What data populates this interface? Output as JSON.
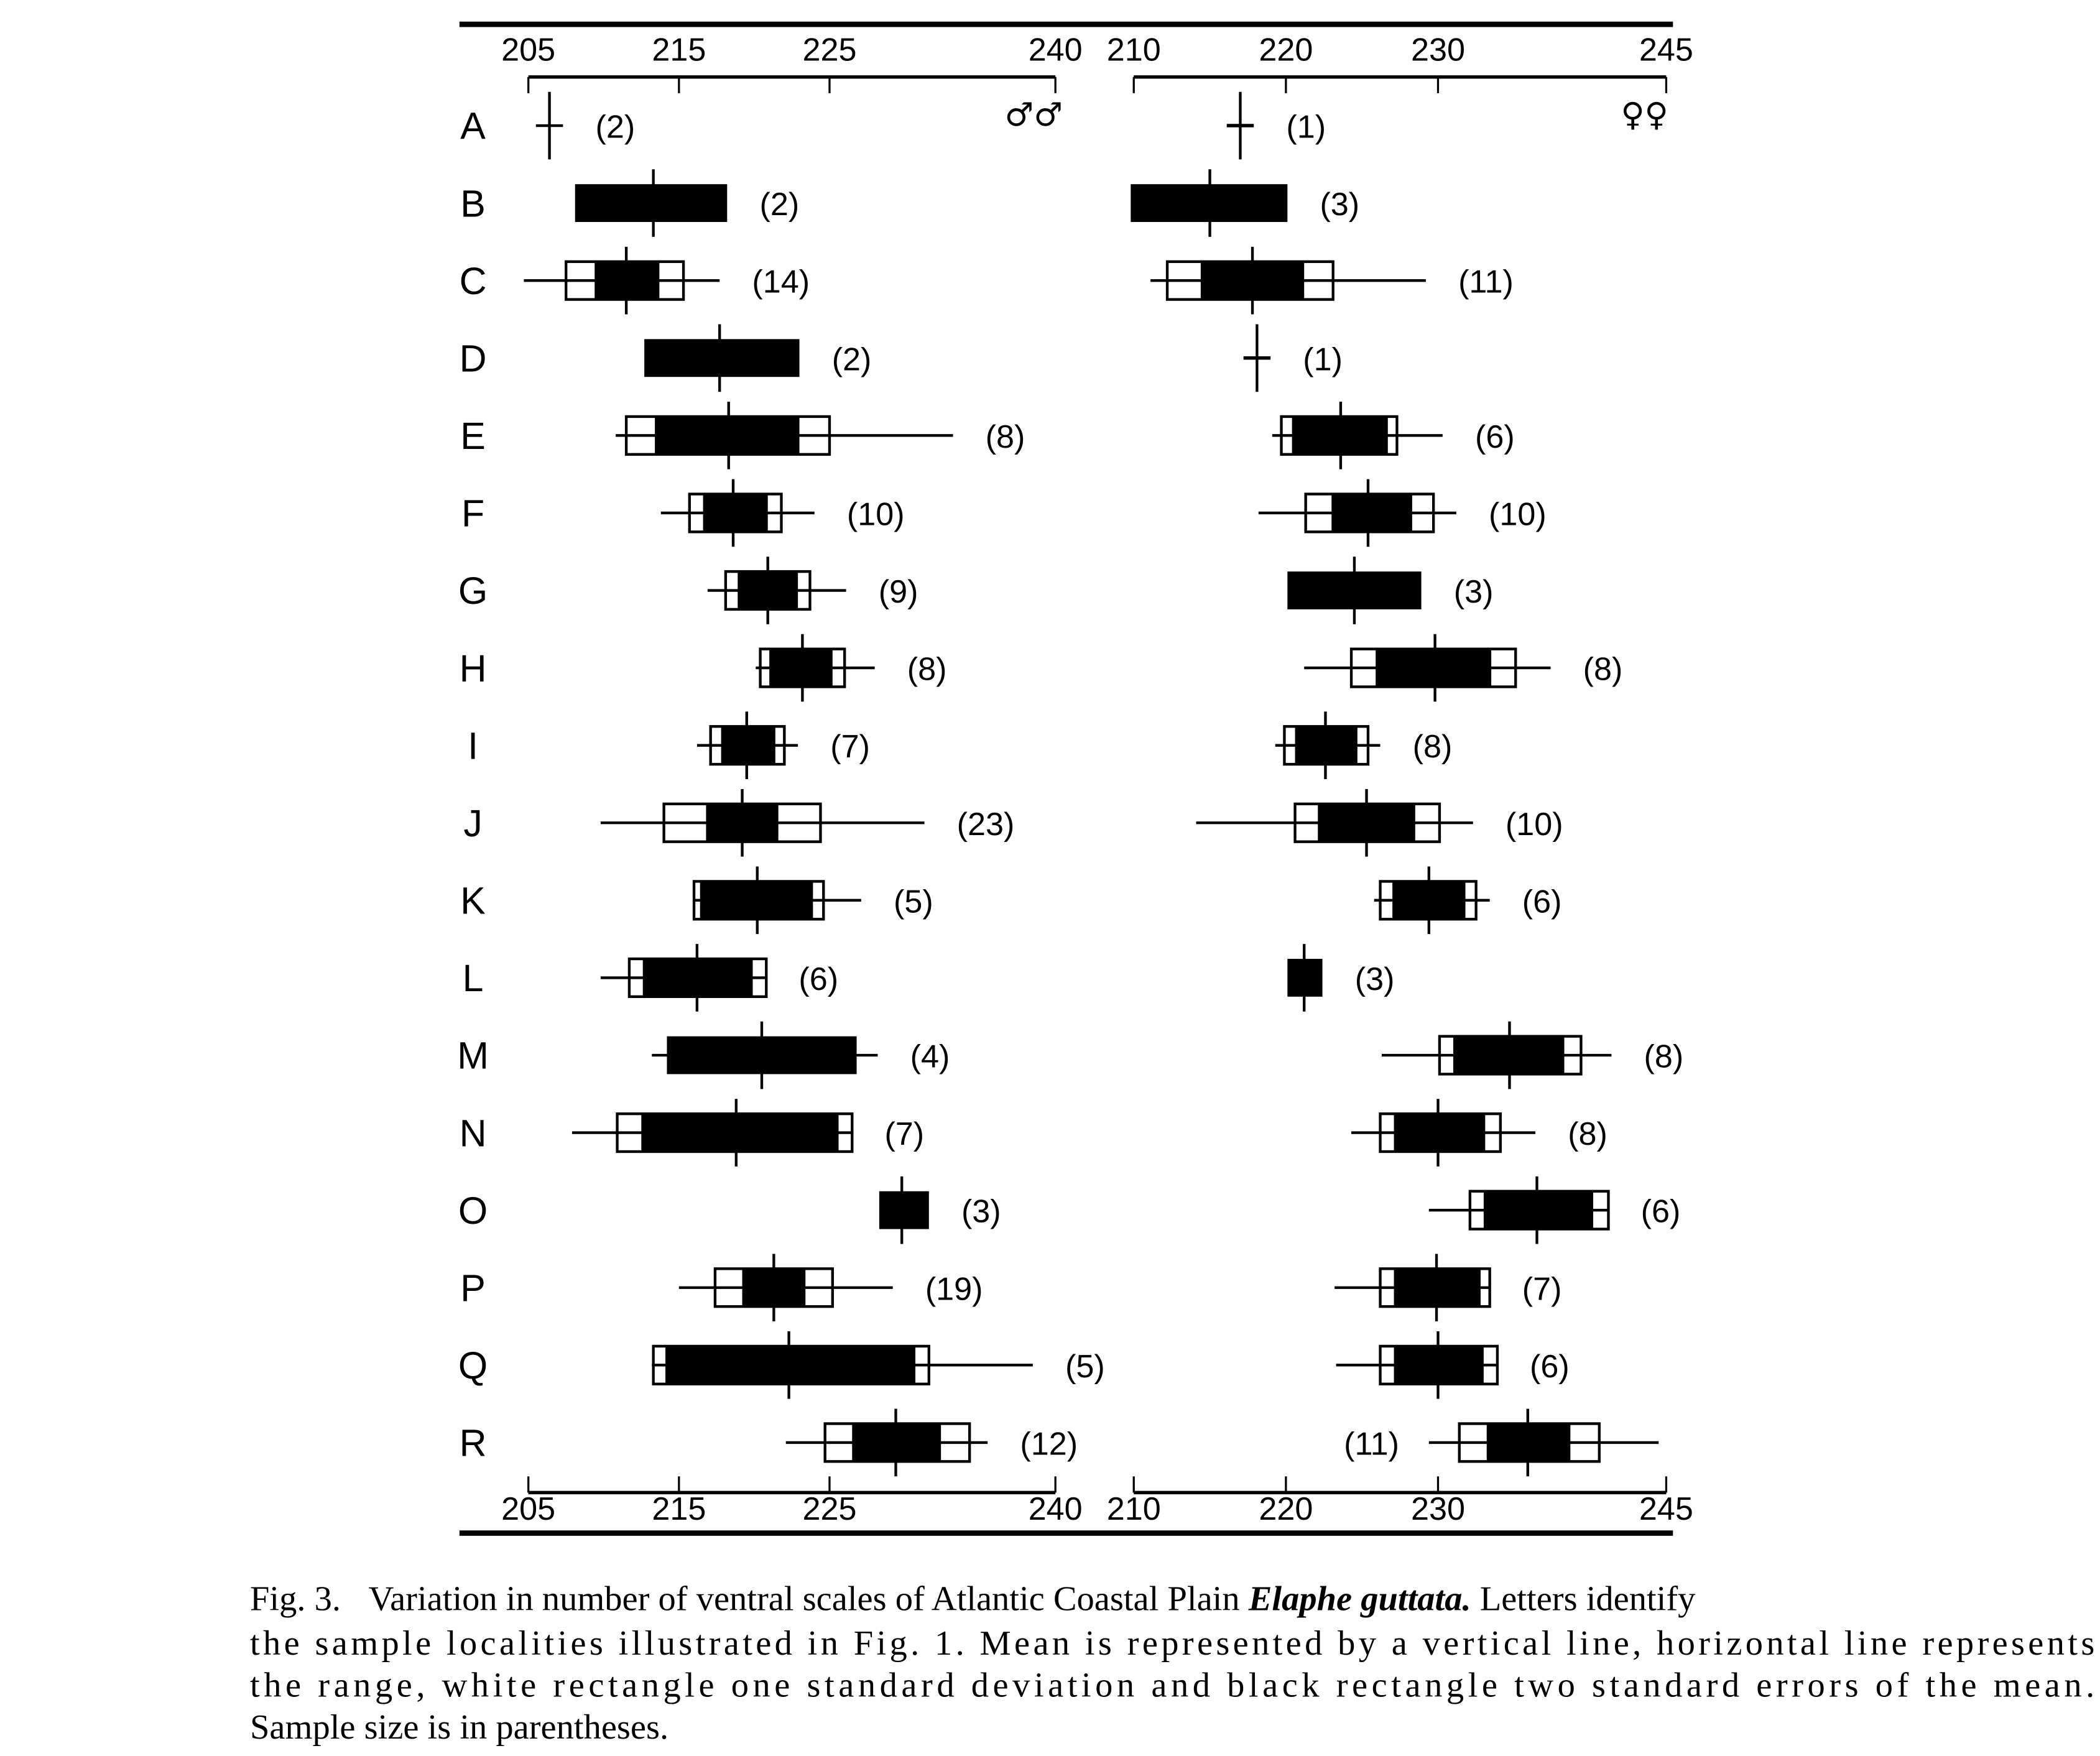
{
  "chart_data": [
    {
      "type": "range-box (Dice-Hubbs)",
      "panel": "males",
      "sex_symbol": "♂♂",
      "xlim": [
        205,
        240
      ],
      "ticks": [
        205,
        215,
        225,
        240
      ],
      "tick_labels": [
        "205",
        "215",
        "225",
        "240"
      ],
      "rows": [
        {
          "label": "A",
          "n": "(2)",
          "mean": 206.4,
          "range": [
            205.5,
            207.3
          ]
        },
        {
          "label": "B",
          "n": "(2)",
          "mean": 213.3,
          "se": [
            208.1,
            218.2
          ]
        },
        {
          "label": "C",
          "n": "(14)",
          "mean": 211.5,
          "range": [
            204.7,
            217.7
          ],
          "sd": [
            207.5,
            215.3
          ],
          "se": [
            209.4,
            213.7
          ]
        },
        {
          "label": "D",
          "n": "(2)",
          "mean": 217.7,
          "se": [
            212.7,
            223.0
          ]
        },
        {
          "label": "E",
          "n": "(8)",
          "mean": 218.3,
          "range": [
            210.8,
            233.2
          ],
          "sd": [
            211.5,
            225.0
          ],
          "se": [
            213.4,
            223.0
          ]
        },
        {
          "label": "F",
          "n": "(10)",
          "mean": 218.6,
          "range": [
            213.8,
            224.0
          ],
          "sd": [
            215.7,
            221.8
          ],
          "se": [
            216.6,
            220.9
          ]
        },
        {
          "label": "G",
          "n": "(9)",
          "mean": 220.9,
          "range": [
            216.9,
            226.1
          ],
          "sd": [
            218.1,
            223.7
          ],
          "se": [
            218.9,
            222.9
          ]
        },
        {
          "label": "H",
          "n": "(8)",
          "mean": 223.2,
          "range": [
            220.1,
            228.0
          ],
          "sd": [
            220.4,
            226.0
          ],
          "se": [
            221.0,
            225.2
          ]
        },
        {
          "label": "I",
          "n": "(7)",
          "mean": 219.5,
          "range": [
            216.2,
            222.9
          ],
          "sd": [
            217.1,
            222.0
          ],
          "se": [
            217.8,
            221.4
          ]
        },
        {
          "label": "J",
          "n": "(23)",
          "mean": 219.2,
          "range": [
            209.8,
            231.3
          ],
          "sd": [
            214.0,
            224.4
          ],
          "se": [
            216.8,
            221.6
          ]
        },
        {
          "label": "K",
          "n": "(5)",
          "mean": 220.2,
          "range": [
            216.0,
            227.1
          ],
          "sd": [
            216.0,
            224.6
          ],
          "se": [
            216.4,
            223.9
          ]
        },
        {
          "label": "L",
          "n": "(6)",
          "mean": 216.2,
          "range": [
            209.8,
            220.8
          ],
          "sd": [
            211.7,
            220.8
          ],
          "se": [
            212.6,
            219.9
          ]
        },
        {
          "label": "M",
          "n": "(4)",
          "mean": 220.5,
          "range": [
            213.2,
            228.2
          ],
          "se": [
            214.2,
            226.8
          ]
        },
        {
          "label": "N",
          "n": "(7)",
          "mean": 218.8,
          "range": [
            207.9,
            226.5
          ],
          "sd": [
            210.9,
            226.5
          ],
          "se": [
            212.5,
            225.6
          ]
        },
        {
          "label": "O",
          "n": "(3)",
          "mean": 229.8,
          "se": [
            228.3,
            231.6
          ]
        },
        {
          "label": "P",
          "n": "(19)",
          "mean": 221.3,
          "range": [
            215.0,
            229.2
          ],
          "sd": [
            217.4,
            225.2
          ],
          "se": [
            219.2,
            223.4
          ]
        },
        {
          "label": "Q",
          "n": "(5)",
          "mean": 222.3,
          "range": [
            213.2,
            238.5
          ],
          "sd": [
            213.3,
            231.6
          ],
          "se": [
            214.1,
            230.7
          ]
        },
        {
          "label": "R",
          "n": "(12)",
          "mean": 229.4,
          "range": [
            222.1,
            235.5
          ],
          "sd": [
            224.7,
            234.3
          ],
          "se": [
            226.5,
            232.4
          ]
        }
      ]
    },
    {
      "type": "range-box (Dice-Hubbs)",
      "panel": "females",
      "sex_symbol": "♀♀",
      "xlim": [
        210,
        245
      ],
      "ticks": [
        210,
        220,
        230,
        245
      ],
      "tick_labels": [
        "210",
        "220",
        "230",
        "245"
      ],
      "rows": [
        {
          "label": "A",
          "n": "(1)",
          "mean": 217.0
        },
        {
          "label": "B",
          "n": "(3)",
          "mean": 215.0,
          "se": [
            209.8,
            220.1
          ]
        },
        {
          "label": "C",
          "n": "(11)",
          "mean": 217.8,
          "range": [
            211.1,
            229.2
          ],
          "sd": [
            212.2,
            223.1
          ],
          "se": [
            214.4,
            221.2
          ]
        },
        {
          "label": "D",
          "n": "(1)",
          "mean": 218.1
        },
        {
          "label": "E",
          "n": "(6)",
          "mean": 223.6,
          "range": [
            219.1,
            230.3
          ],
          "sd": [
            219.7,
            227.3
          ],
          "se": [
            220.4,
            226.7
          ]
        },
        {
          "label": "F",
          "n": "(10)",
          "mean": 225.4,
          "range": [
            218.2,
            231.2
          ],
          "sd": [
            221.3,
            229.7
          ],
          "se": [
            223.0,
            228.3
          ]
        },
        {
          "label": "G",
          "n": "(3)",
          "mean": 224.5,
          "se": [
            220.1,
            228.9
          ]
        },
        {
          "label": "H",
          "n": "(8)",
          "mean": 229.8,
          "range": [
            221.2,
            237.4
          ],
          "sd": [
            224.3,
            235.1
          ],
          "se": [
            225.9,
            233.5
          ]
        },
        {
          "label": "I",
          "n": "(8)",
          "mean": 222.6,
          "range": [
            219.3,
            226.2
          ],
          "sd": [
            219.9,
            225.4
          ],
          "se": [
            220.6,
            224.7
          ]
        },
        {
          "label": "J",
          "n": "(10)",
          "mean": 225.3,
          "range": [
            214.1,
            232.3
          ],
          "sd": [
            220.6,
            230.1
          ],
          "se": [
            222.1,
            228.5
          ]
        },
        {
          "label": "K",
          "n": "(6)",
          "mean": 229.4,
          "range": [
            225.8,
            233.4
          ],
          "sd": [
            226.2,
            232.5
          ],
          "se": [
            227.0,
            231.8
          ]
        },
        {
          "label": "L",
          "n": "(3)",
          "mean": 221.2,
          "se": [
            220.1,
            222.4
          ]
        },
        {
          "label": "M",
          "n": "(8)",
          "mean": 234.7,
          "range": [
            226.3,
            241.4
          ],
          "sd": [
            230.1,
            239.4
          ],
          "se": [
            231.0,
            238.3
          ]
        },
        {
          "label": "N",
          "n": "(8)",
          "mean": 230.0,
          "range": [
            224.3,
            236.4
          ],
          "sd": [
            226.2,
            234.1
          ],
          "se": [
            227.1,
            233.1
          ]
        },
        {
          "label": "O",
          "n": "(6)",
          "mean": 236.5,
          "range": [
            229.4,
            241.2
          ],
          "sd": [
            232.1,
            241.2
          ],
          "se": [
            233.0,
            240.2
          ]
        },
        {
          "label": "P",
          "n": "(7)",
          "mean": 229.9,
          "range": [
            223.2,
            233.4
          ],
          "sd": [
            226.2,
            233.4
          ],
          "se": [
            227.1,
            232.8
          ]
        },
        {
          "label": "Q",
          "n": "(6)",
          "mean": 230.0,
          "range": [
            223.3,
            233.9
          ],
          "sd": [
            226.2,
            233.9
          ],
          "se": [
            227.1,
            233.0
          ]
        },
        {
          "label": "R",
          "n": "(11)",
          "mean": 235.9,
          "range": [
            229.4,
            244.5
          ],
          "sd": [
            231.4,
            240.6
          ],
          "se": [
            233.2,
            238.7
          ],
          "n_position": "left"
        }
      ]
    }
  ],
  "caption": {
    "fig_label": "Fig. 3.",
    "line1_before_italic": "Variation in number of ventral scales of Atlantic Coastal Plain ",
    "italic": "Elaphe guttata.",
    "line1_after_italic": " Letters identify",
    "line2": "the sample localities illustrated in Fig. 1. Mean is represented by a vertical line, horizontal line represents",
    "line3": "the range, white rectangle one standard deviation and black rectangle two standard errors of the mean.",
    "line4": "Sample size is in parentheses."
  }
}
